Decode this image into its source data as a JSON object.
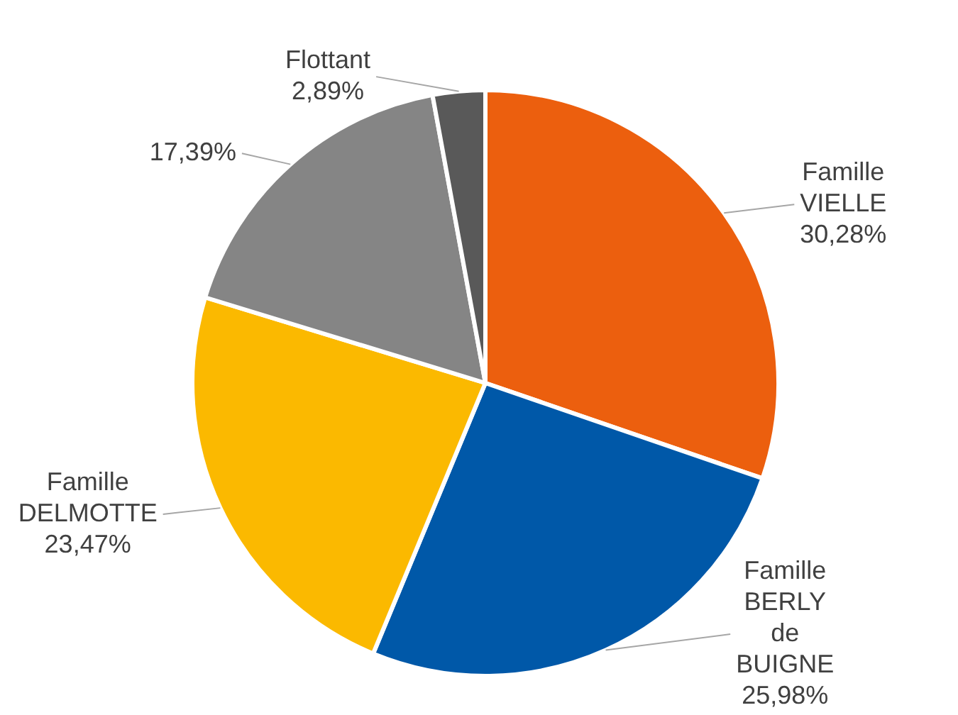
{
  "chart_data": {
    "type": "pie",
    "categories": [
      "Famille VIELLE",
      "Famille BERLY de BUIGNE",
      "Famille DELMOTTE",
      null,
      "Flottant"
    ],
    "values": [
      30.28,
      25.98,
      23.47,
      17.39,
      2.89
    ],
    "colors": [
      "#ec5f0e",
      "#0058a8",
      "#fbb900",
      "#858585",
      "#595959"
    ],
    "value_labels": [
      "30,28%",
      "25,98%",
      "23,47%",
      "17,39%",
      "2,89%"
    ],
    "legend": false
  }
}
